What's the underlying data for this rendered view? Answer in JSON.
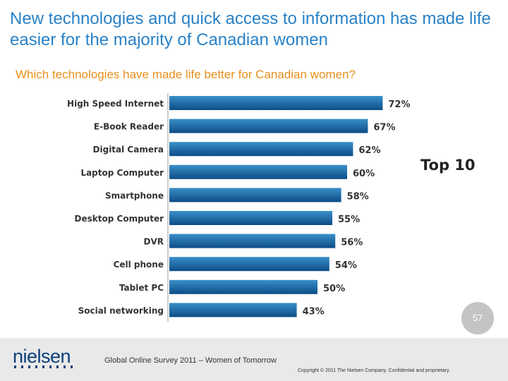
{
  "slide": {
    "title": "New technologies and quick access to information has made life easier for the majority of Canadian women",
    "subtitle": "Which technologies have made life better for Canadian women?",
    "badge": "Top 10",
    "page_number": "57",
    "logo": "nielsen",
    "source": "Global Online Survey 2011 – Women of Tomorrow",
    "copyright": "Copyright © 2011 The Nielsen Company. Confidential and proprietary."
  },
  "colors": {
    "bar_top": "#3a90c9",
    "bar_bottom": "#0d4c86",
    "title": "#2a82c7",
    "subtitle": "#e8901d"
  },
  "chart_data": {
    "type": "bar",
    "orientation": "horizontal",
    "title": "Which technologies have made life better for Canadian women?",
    "categories": [
      "High Speed Internet",
      "E-Book Reader",
      "Digital Camera",
      "Laptop Computer",
      "Smartphone",
      "Desktop Computer",
      "DVR",
      "Cell phone",
      "Tablet PC",
      "Social networking"
    ],
    "values": [
      72,
      67,
      62,
      60,
      58,
      55,
      56,
      54,
      50,
      43
    ],
    "labels": [
      "72%",
      "67%",
      "62%",
      "60%",
      "58%",
      "55%",
      "56%",
      "54%",
      "50%",
      "43%"
    ],
    "xlim": [
      0,
      100
    ],
    "grid": false
  }
}
